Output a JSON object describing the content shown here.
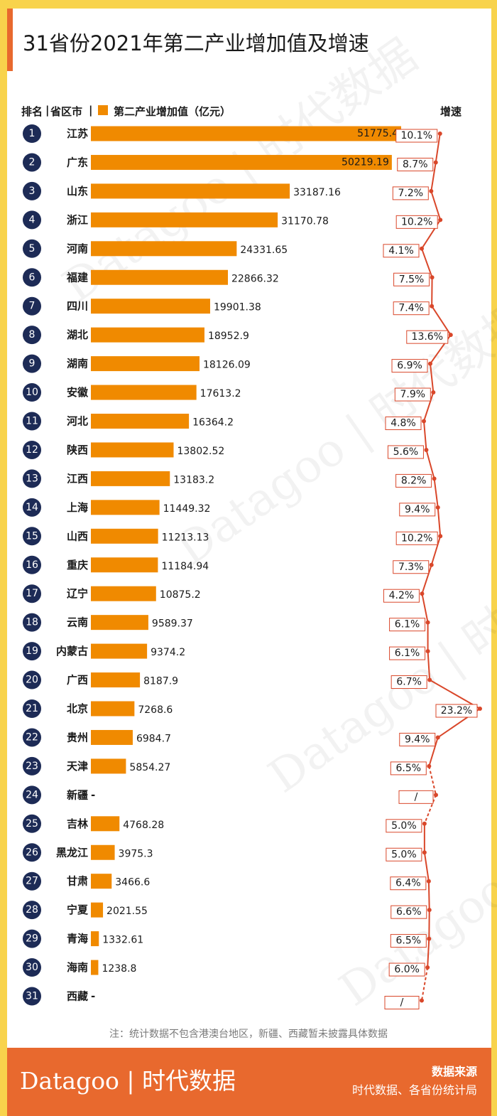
{
  "title": "31省份2021年第二产业增加值及增速",
  "header": {
    "rank_label": "排名",
    "sep1": "|",
    "region_label": "省区市",
    "sep2": "|",
    "legend_label": "第二产业增加值（亿元）",
    "growth_label": "增速"
  },
  "colors": {
    "bar": "#f08a00",
    "badge": "#1d2b56",
    "line": "#d9472a",
    "footer": "#e8692e",
    "frame": "#f8d34c"
  },
  "note": "注：统计数据不包含港澳台地区，新疆、西藏暂未披露具体数据",
  "footer": {
    "logo": "Datagoo | 时代数据",
    "source_title": "数据来源",
    "source_text": "时代数据、各省份统计局"
  },
  "watermark": "Datagoo | 时代数据",
  "chart_data": {
    "type": "bar",
    "orientation": "horizontal",
    "title": "31省份2021年第二产业增加值及增速",
    "xlabel": "第二产业增加值（亿元）",
    "growth_label": "增速",
    "categories": [
      "江苏",
      "广东",
      "山东",
      "浙江",
      "河南",
      "福建",
      "四川",
      "湖北",
      "湖南",
      "安徽",
      "河北",
      "陕西",
      "江西",
      "上海",
      "山西",
      "重庆",
      "辽宁",
      "云南",
      "内蒙古",
      "广西",
      "北京",
      "贵州",
      "天津",
      "新疆",
      "吉林",
      "黑龙江",
      "甘肃",
      "宁夏",
      "青海",
      "海南",
      "西藏"
    ],
    "ranks": [
      "1",
      "2",
      "3",
      "4",
      "5",
      "6",
      "7",
      "8",
      "9",
      "10",
      "11",
      "12",
      "13",
      "14",
      "15",
      "16",
      "17",
      "18",
      "19",
      "20",
      "21",
      "22",
      "23",
      "24",
      "25",
      "26",
      "27",
      "28",
      "29",
      "30",
      "31"
    ],
    "values": [
      51775.4,
      50219.19,
      33187.16,
      31170.78,
      24331.65,
      22866.32,
      19901.38,
      18952.9,
      18126.09,
      17613.2,
      16364.2,
      13802.52,
      13183.2,
      11449.32,
      11213.13,
      11184.94,
      10875.2,
      9589.37,
      9374.2,
      8187.9,
      7268.6,
      6984.7,
      5854.27,
      null,
      4768.28,
      3975.3,
      3466.6,
      2021.55,
      1332.61,
      1238.8,
      null
    ],
    "value_labels": [
      "51775.4",
      "50219.19",
      "33187.16",
      "31170.78",
      "24331.65",
      "22866.32",
      "19901.38",
      "18952.9",
      "18126.09",
      "17613.2",
      "16364.2",
      "13802.52",
      "13183.2",
      "11449.32",
      "11213.13",
      "11184.94",
      "10875.2",
      "9589.37",
      "9374.2",
      "8187.9",
      "7268.6",
      "6984.7",
      "5854.27",
      "-",
      "4768.28",
      "3975.3",
      "3466.6",
      "2021.55",
      "1332.61",
      "1238.8",
      "-"
    ],
    "growth": [
      10.1,
      8.7,
      7.2,
      10.2,
      4.1,
      7.5,
      7.4,
      13.6,
      6.9,
      7.9,
      4.8,
      5.6,
      8.2,
      9.4,
      10.2,
      7.3,
      4.2,
      6.1,
      6.1,
      6.7,
      23.2,
      9.4,
      6.5,
      null,
      5.0,
      5.0,
      6.4,
      6.6,
      6.5,
      6.0,
      null
    ],
    "growth_labels": [
      "10.1%",
      "8.7%",
      "7.2%",
      "10.2%",
      "4.1%",
      "7.5%",
      "7.4%",
      "13.6%",
      "6.9%",
      "7.9%",
      "4.8%",
      "5.6%",
      "8.2%",
      "9.4%",
      "10.2%",
      "7.3%",
      "4.2%",
      "6.1%",
      "6.1%",
      "6.7%",
      "23.2%",
      "9.4%",
      "6.5%",
      "/",
      "5.0%",
      "5.0%",
      "6.4%",
      "6.6%",
      "6.5%",
      "6.0%",
      "/"
    ],
    "xlim": [
      0,
      51775.4
    ]
  }
}
